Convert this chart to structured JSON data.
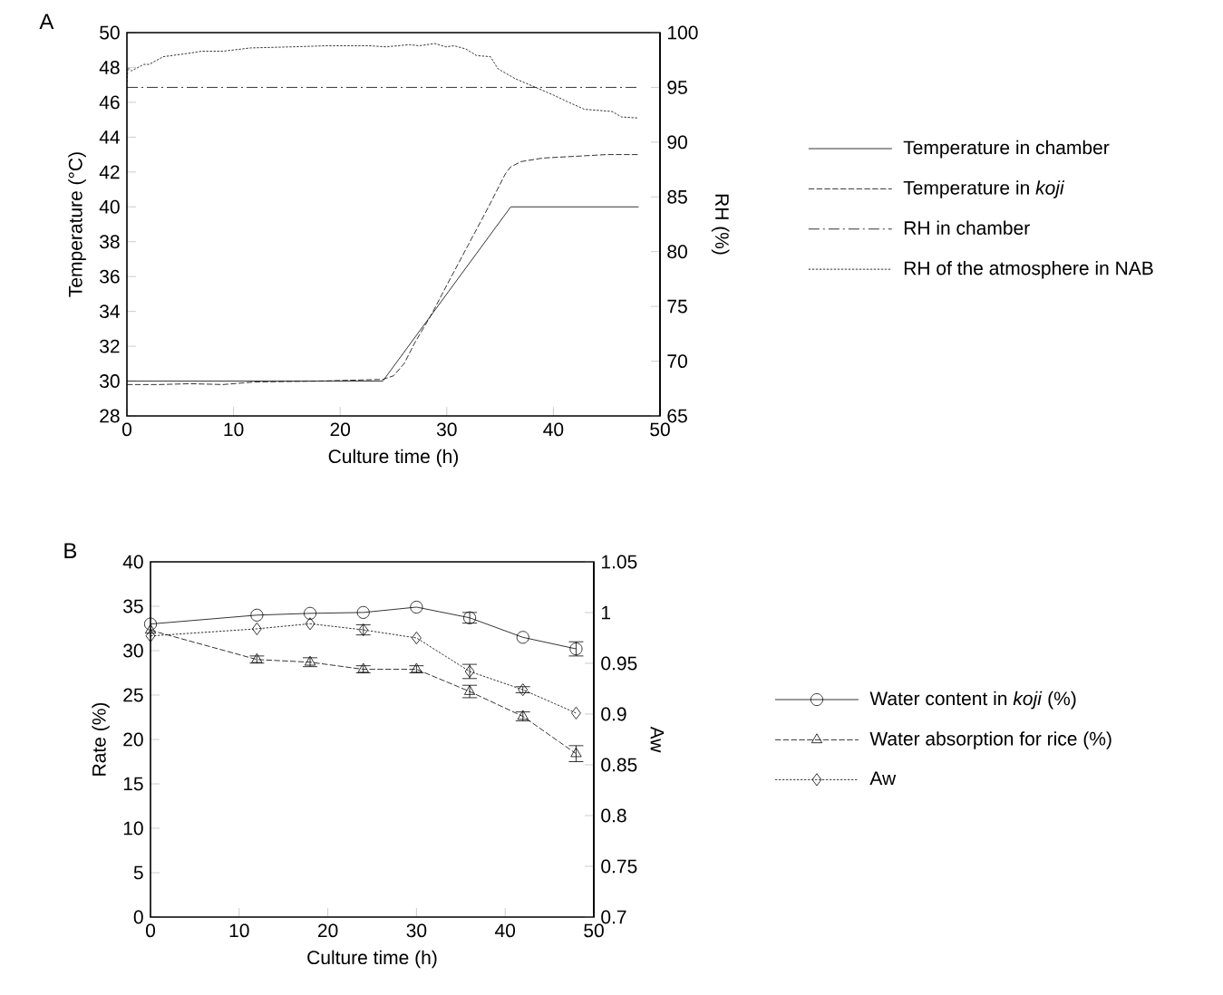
{
  "chart_data": [
    {
      "type": "line",
      "title": "A",
      "xlabel": "Culture time (h)",
      "ylabel": "Temperature (°C)",
      "y2label": "RH (%)",
      "xlim": [
        0,
        50
      ],
      "xticks": [
        0,
        10,
        20,
        30,
        40,
        50
      ],
      "ylim": [
        28,
        50
      ],
      "yticks": [
        28,
        30,
        32,
        34,
        36,
        38,
        40,
        42,
        44,
        46,
        48,
        50
      ],
      "y2lim": [
        65,
        100
      ],
      "y2ticks": [
        65,
        70,
        75,
        80,
        85,
        90,
        95,
        100
      ],
      "legend": "right",
      "series": [
        {
          "name": "Temperature in chamber",
          "color": "#000000",
          "line_style": "solid",
          "x": [
            0,
            24,
            36,
            48
          ],
          "values": [
            30,
            30,
            40,
            40
          ]
        },
        {
          "name": "Temperature in *koji*",
          "color": "#000000",
          "line_style": "dashed",
          "x": [
            0,
            3,
            6,
            9,
            12,
            18,
            24,
            25,
            26,
            27,
            28.5,
            30,
            32,
            34,
            35.5,
            36,
            37,
            39,
            42,
            45,
            48
          ],
          "values": [
            29.8,
            29.8,
            29.85,
            29.8,
            29.95,
            30.0,
            30.1,
            30.3,
            31,
            32.2,
            33.75,
            35.5,
            37.8,
            40.1,
            41.9,
            42.3,
            42.6,
            42.8,
            42.9,
            43.0,
            43.0
          ]
        },
        {
          "name": "RH in chamber",
          "color": "#000000",
          "line_style": "dashdot",
          "axis": "y2",
          "x": [
            0,
            48
          ],
          "values": [
            95,
            95
          ]
        },
        {
          "name": "RH of the atmosphere in NAB",
          "color": "#000000",
          "line_style": "dotted",
          "axis": "y2",
          "x": [
            0,
            0.1,
            0.4,
            1.6,
            2.1,
            3.4,
            5.7,
            7.0,
            9.0,
            11.6,
            15.5,
            18.8,
            22.7,
            24.3,
            26.5,
            27.4,
            28.9,
            29.9,
            30.7,
            31.8,
            32.8,
            34.1,
            34.8,
            36.4,
            38.1,
            40.0,
            41.3,
            42.9,
            45.5,
            46.4,
            48
          ],
          "values": [
            95.5,
            96.8,
            96.5,
            97.1,
            97.1,
            97.8,
            98.1,
            98.3,
            98.3,
            98.6,
            98.7,
            98.8,
            98.8,
            98.7,
            98.9,
            98.8,
            99.0,
            98.7,
            98.8,
            98.5,
            97.9,
            97.8,
            96.7,
            95.8,
            95.1,
            94.3,
            93.7,
            93.0,
            92.8,
            92.3,
            92.2
          ]
        }
      ]
    },
    {
      "type": "line",
      "title": "B",
      "xlabel": "Culture time (h)",
      "ylabel": "Rate (%)",
      "y2label": "Aw",
      "xlim": [
        0,
        50
      ],
      "xticks": [
        0,
        10,
        20,
        30,
        40,
        50
      ],
      "ylim": [
        0,
        40
      ],
      "yticks": [
        0,
        5,
        10,
        15,
        20,
        25,
        30,
        35,
        40
      ],
      "y2lim": [
        0.7,
        1.05
      ],
      "y2ticks": [
        0.7,
        0.75,
        0.8,
        0.85,
        0.9,
        0.95,
        1,
        1.05
      ],
      "legend": "right",
      "series": [
        {
          "name": "Water content in *koji* (%)",
          "color": "#000000",
          "line_style": "solid",
          "marker": "circle",
          "x": [
            0,
            12,
            18,
            24,
            30,
            36,
            42,
            48
          ],
          "values": [
            33.0,
            34.0,
            34.2,
            34.3,
            34.9,
            33.7,
            31.5,
            30.2
          ],
          "errors": [
            null,
            null,
            null,
            null,
            null,
            0.6,
            null,
            0.8
          ]
        },
        {
          "name": "Water absorption for rice (%)",
          "color": "#000000",
          "line_style": "dashed",
          "marker": "triangle",
          "x": [
            0,
            12,
            18,
            24,
            30,
            36,
            42,
            48
          ],
          "values": [
            32.3,
            29.0,
            28.7,
            27.9,
            27.9,
            25.4,
            22.6,
            18.4
          ],
          "errors": [
            null,
            0.4,
            0.5,
            0.4,
            0.4,
            0.7,
            0.5,
            0.9
          ]
        },
        {
          "name": "Aw",
          "color": "#000000",
          "line_style": "dotted",
          "marker": "diamond",
          "axis": "y2",
          "x": [
            0,
            12,
            18,
            24,
            30,
            36,
            42,
            48
          ],
          "values": [
            0.977,
            0.984,
            0.989,
            0.983,
            0.975,
            0.942,
            0.924,
            0.901
          ],
          "errors": [
            null,
            null,
            null,
            0.005,
            null,
            0.007,
            0.003,
            null
          ]
        }
      ]
    }
  ]
}
